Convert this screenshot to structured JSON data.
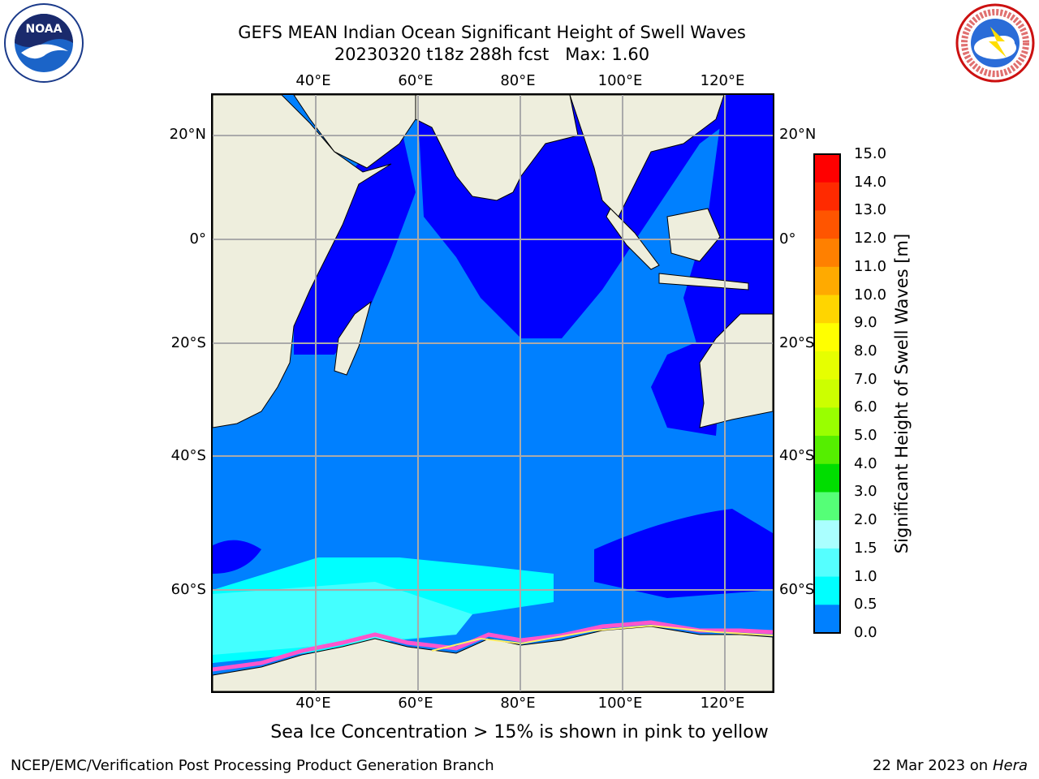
{
  "title_line1": "GEFS MEAN Indian Ocean Significant Height of Swell Waves",
  "title_line2": "20230320 t18z 288h fcst   Max: 1.60",
  "logos": {
    "left": "NOAA",
    "right_icon": "nws-logo"
  },
  "map": {
    "projection": "lat-lon",
    "lon_range": [
      20,
      130
    ],
    "lat_range": [
      -74,
      28
    ],
    "lon_ticks": [
      "40°E",
      "60°E",
      "80°E",
      "100°E",
      "120°E"
    ],
    "lat_ticks_left": [
      "20°N",
      "0°",
      "20°S",
      "40°S",
      "60°S"
    ],
    "lat_ticks_right": [
      "20°N",
      "0°",
      "20°S",
      "40°S",
      "60°S"
    ],
    "gridlines": true,
    "colors": {
      "land": "#eeeedd",
      "ocean_low": "#0000ff",
      "ocean_mid": "#0080ff",
      "ocean_high": "#00ffff",
      "ice_pink": "#ff55cc",
      "ice_yellow": "#ffee66"
    }
  },
  "colorbar": {
    "label": "Significant Height of Swell Waves [m]",
    "ticks": [
      "15.0",
      "14.0",
      "13.0",
      "12.0",
      "11.0",
      "10.0",
      "9.0",
      "8.0",
      "7.0",
      "6.0",
      "5.0",
      "4.0",
      "3.0",
      "2.0",
      "1.5",
      "1.0",
      "0.5",
      "0.0"
    ],
    "colors": [
      "#ff0000",
      "#ff2a00",
      "#ff5500",
      "#ff8000",
      "#ffaa00",
      "#ffd500",
      "#ffff00",
      "#e6ff00",
      "#ccff00",
      "#99ff00",
      "#55ee00",
      "#00dd00",
      "#55ff77",
      "#aaffff",
      "#55ffff",
      "#00ffff",
      "#0080ff",
      "#0000ff"
    ]
  },
  "caption": "Sea Ice Concentration > 15% is shown in pink to yellow",
  "footer": {
    "left": "NCEP/EMC/Verification Post Processing Product Generation Branch",
    "date": "22 Mar 2023 on",
    "host": "Hera"
  }
}
